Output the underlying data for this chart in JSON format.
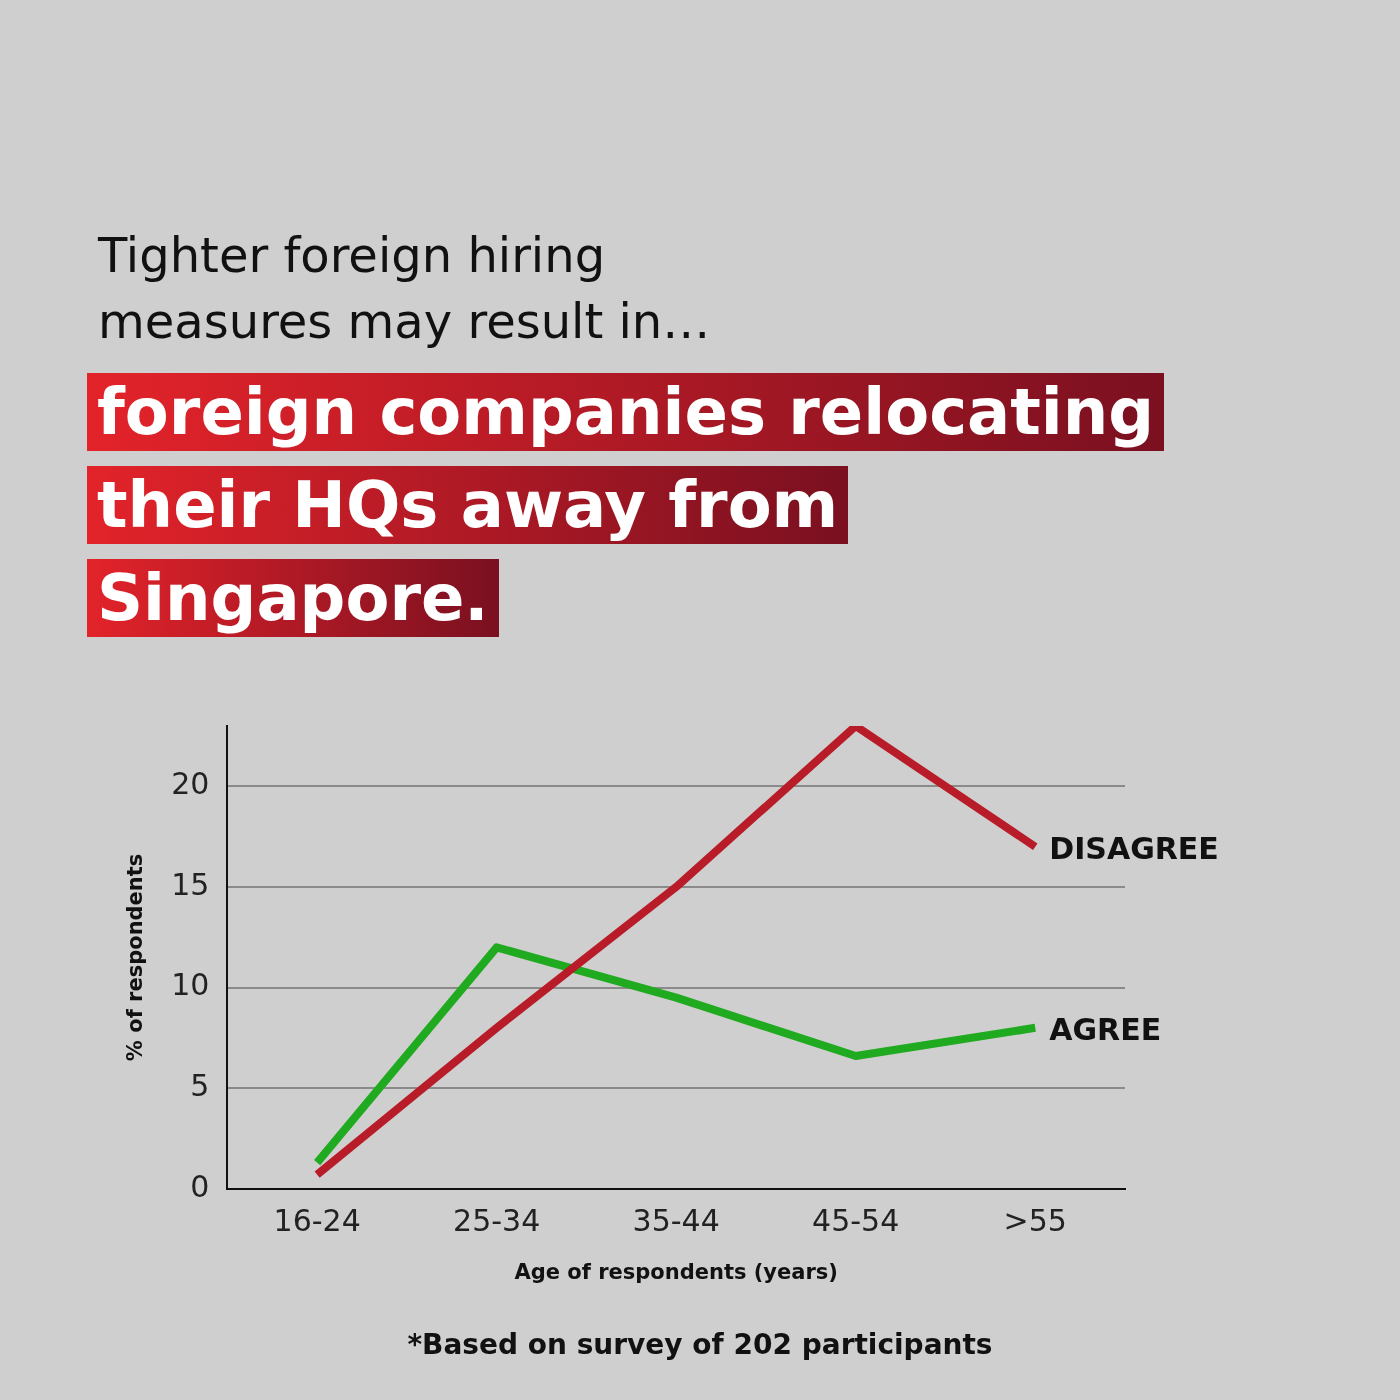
{
  "chart_data": {
    "type": "line",
    "title": "Tighter foreign hiring measures may result in…",
    "subtitle": "foreign companies relocating their HQs away from Singapore.",
    "xlabel": "Age of respondents (years)",
    "ylabel": "% of respondents",
    "categories": [
      "16-24",
      "25-34",
      "35-44",
      "45-54",
      ">55"
    ],
    "series": [
      {
        "name": "DISAGREE",
        "color": "#b81c28",
        "values": [
          0.7,
          8,
          15,
          23,
          17
        ]
      },
      {
        "name": "AGREE",
        "color": "#1faa1f",
        "values": [
          1.3,
          12,
          9.5,
          6.6,
          8
        ]
      }
    ],
    "ylim": [
      0,
      23
    ],
    "yticks": [
      0,
      5,
      10,
      15,
      20
    ],
    "grid": "y",
    "legend": false,
    "marker": "none",
    "line_style": "solid",
    "annotations": [
      "*Based on survey of 202 participants"
    ]
  }
}
